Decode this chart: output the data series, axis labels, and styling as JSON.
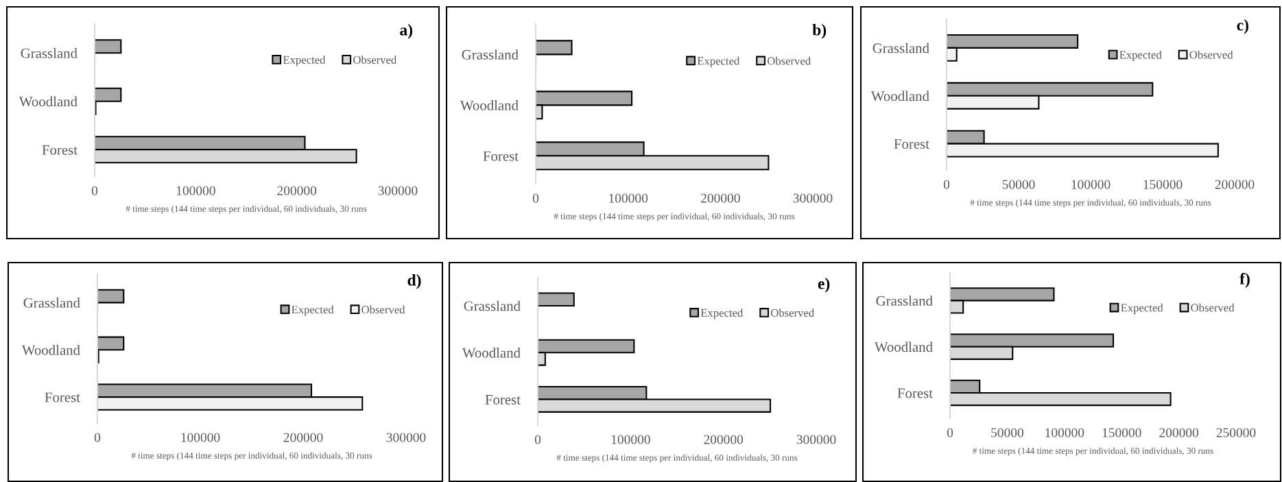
{
  "chart_data": [
    {
      "type": "bar",
      "orientation": "horizontal",
      "title": "a)",
      "categories": [
        "Grassland",
        "Woodland",
        "Forest"
      ],
      "xlabel": "# time steps (144 time steps per individual, 60 individuals, 30 runs",
      "xlim": [
        0,
        300000
      ],
      "xticks": [
        0,
        100000,
        200000,
        300000
      ],
      "legend": "top right",
      "series": [
        {
          "name": "Expected",
          "color": "#a6a6a6",
          "values": [
            26000,
            26000,
            208000
          ]
        },
        {
          "name": "Observed",
          "color": "#d9d9d9",
          "values": [
            null,
            1000,
            259000
          ]
        }
      ]
    },
    {
      "type": "bar",
      "orientation": "horizontal",
      "title": "b)",
      "categories": [
        "Grassland",
        "Woodland",
        "Forest"
      ],
      "xlabel": "# time steps (144 time steps per individual, 60 individuals, 30 runs",
      "xlim": [
        0,
        300000
      ],
      "xticks": [
        0,
        100000,
        200000,
        300000
      ],
      "legend": "top right",
      "series": [
        {
          "name": "Expected",
          "color": "#a6a6a6",
          "values": [
            39000,
            104000,
            117000
          ]
        },
        {
          "name": "Observed",
          "color": "#d9d9d9",
          "values": [
            null,
            7000,
            252000
          ]
        }
      ]
    },
    {
      "type": "bar",
      "orientation": "horizontal",
      "title": "c)",
      "categories": [
        "Grassland",
        "Woodland",
        "Forest"
      ],
      "xlabel": "# time steps (144 time steps per individual, 60 individuals, 30 runs",
      "xlim": [
        0,
        200000
      ],
      "xticks": [
        0,
        50000,
        100000,
        150000,
        200000
      ],
      "legend": "top right",
      "series": [
        {
          "name": "Expected",
          "color": "#a6a6a6",
          "values": [
            91000,
            143000,
            26000
          ]
        },
        {
          "name": "Observed",
          "color": "#f2f2f2",
          "values": [
            7000,
            64000,
            188500
          ]
        }
      ]
    },
    {
      "type": "bar",
      "orientation": "horizontal",
      "title": "d)",
      "categories": [
        "Grassland",
        "Woodland",
        "Forest"
      ],
      "xlabel": "# time steps (144 time steps per individual, 60 individuals, 30 runs",
      "xlim": [
        0,
        300000
      ],
      "xticks": [
        0,
        100000,
        200000,
        300000
      ],
      "legend": "top right",
      "series": [
        {
          "name": "Expected",
          "color": "#a6a6a6",
          "values": [
            25500,
            25500,
            208000
          ]
        },
        {
          "name": "Observed",
          "color": "#f2f2f2",
          "values": [
            null,
            1100,
            257500
          ]
        }
      ]
    },
    {
      "type": "bar",
      "orientation": "horizontal",
      "title": "e)",
      "categories": [
        "Grassland",
        "Woodland",
        "Forest"
      ],
      "xlabel": "# time steps (144 time steps per individual, 60 individuals, 30 runs",
      "xlim": [
        0,
        300000
      ],
      "xticks": [
        0,
        100000,
        200000,
        300000
      ],
      "legend": "top right",
      "series": [
        {
          "name": "Expected",
          "color": "#a6a6a6",
          "values": [
            39000,
            103700,
            117000
          ]
        },
        {
          "name": "Observed",
          "color": "#d9d9d9",
          "values": [
            null,
            8000,
            250500
          ]
        }
      ]
    },
    {
      "type": "bar",
      "orientation": "horizontal",
      "title": "f)",
      "categories": [
        "Grassland",
        "Woodland",
        "Forest"
      ],
      "xlabel": "# time steps (144 time steps per individual, 60 individuals, 30 runs",
      "xlim": [
        0,
        250000
      ],
      "xticks": [
        0,
        50000,
        100000,
        150000,
        200000,
        250000
      ],
      "legend": "top right",
      "series": [
        {
          "name": "Expected",
          "color": "#a6a6a6",
          "values": [
            90800,
            142700,
            25900
          ]
        },
        {
          "name": "Observed",
          "color": "#d9d9d9",
          "values": [
            11500,
            54700,
            192800
          ]
        }
      ]
    }
  ]
}
